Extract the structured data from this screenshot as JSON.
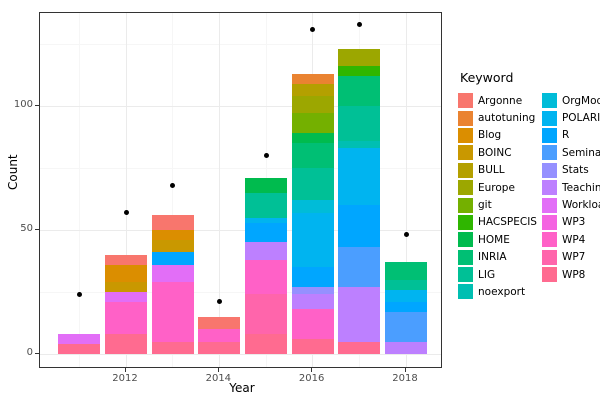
{
  "chart_data": {
    "type": "bar",
    "stacked": true,
    "xlabel": "Year",
    "ylabel": "Count",
    "y_ticks": [
      0,
      50,
      100
    ],
    "y_minor": [
      25,
      75,
      125
    ],
    "x_ticks": [
      2012,
      2014,
      2016,
      2018
    ],
    "x_minor": [
      2011,
      2013,
      2015,
      2017
    ],
    "ylim": [
      -6,
      137.5
    ],
    "xlim": [
      2010.4,
      2018.85
    ],
    "grid": true,
    "legend_title": "Keyword",
    "legend_position": "right",
    "keywords": [
      {
        "name": "Argonne",
        "color": "#F8766D"
      },
      {
        "name": "autotuning",
        "color": "#EA8331"
      },
      {
        "name": "Blog",
        "color": "#DB8E00"
      },
      {
        "name": "BOINC",
        "color": "#C99800"
      },
      {
        "name": "BULL",
        "color": "#B4A000"
      },
      {
        "name": "Europe",
        "color": "#9CA700"
      },
      {
        "name": "git",
        "color": "#74B000"
      },
      {
        "name": "HACSPECIS",
        "color": "#2FB600"
      },
      {
        "name": "HOME",
        "color": "#00BB4E"
      },
      {
        "name": "INRIA",
        "color": "#00BF74"
      },
      {
        "name": "LIG",
        "color": "#00C096"
      },
      {
        "name": "noexport",
        "color": "#00BFB2"
      },
      {
        "name": "OrgMode",
        "color": "#00BCD8"
      },
      {
        "name": "POLARIS",
        "color": "#00B4F0"
      },
      {
        "name": "R",
        "color": "#00A6FF"
      },
      {
        "name": "Seminar",
        "color": "#4B9EFF"
      },
      {
        "name": "Stats",
        "color": "#9590FF"
      },
      {
        "name": "Teaching",
        "color": "#BD80FF"
      },
      {
        "name": "Workload",
        "color": "#E26EF7"
      },
      {
        "name": "WP3",
        "color": "#F463E1"
      },
      {
        "name": "WP4",
        "color": "#FF61C7"
      },
      {
        "name": "WP7",
        "color": "#FF65AB"
      },
      {
        "name": "WP8",
        "color": "#FF6B90"
      }
    ],
    "bars": [
      {
        "year": 2011,
        "total": 8,
        "segments": [
          {
            "keyword": "WP8",
            "value": 4
          },
          {
            "keyword": "Workload",
            "value": 4
          }
        ]
      },
      {
        "year": 2012,
        "total": 40,
        "segments": [
          {
            "keyword": "WP8",
            "value": 8
          },
          {
            "keyword": "WP4",
            "value": 13
          },
          {
            "keyword": "Workload",
            "value": 4
          },
          {
            "keyword": "BOINC",
            "value": 4
          },
          {
            "keyword": "Blog",
            "value": 7
          },
          {
            "keyword": "Argonne",
            "value": 4
          }
        ]
      },
      {
        "year": 2013,
        "total": 56,
        "segments": [
          {
            "keyword": "WP8",
            "value": 5
          },
          {
            "keyword": "WP4",
            "value": 24
          },
          {
            "keyword": "Workload",
            "value": 7
          },
          {
            "keyword": "R",
            "value": 5
          },
          {
            "keyword": "BOINC",
            "value": 5
          },
          {
            "keyword": "Blog",
            "value": 4
          },
          {
            "keyword": "Argonne",
            "value": 6
          }
        ]
      },
      {
        "year": 2014,
        "total": 15,
        "segments": [
          {
            "keyword": "WP8",
            "value": 5
          },
          {
            "keyword": "WP4",
            "value": 5
          },
          {
            "keyword": "Argonne",
            "value": 5
          }
        ]
      },
      {
        "year": 2015,
        "total": 71,
        "segments": [
          {
            "keyword": "WP8",
            "value": 8
          },
          {
            "keyword": "WP7",
            "value": 16
          },
          {
            "keyword": "WP4",
            "value": 14
          },
          {
            "keyword": "Teaching",
            "value": 7
          },
          {
            "keyword": "R",
            "value": 8
          },
          {
            "keyword": "POLARIS",
            "value": 2
          },
          {
            "keyword": "LIG",
            "value": 10
          },
          {
            "keyword": "HOME",
            "value": 6
          }
        ]
      },
      {
        "year": 2016,
        "total": 113,
        "segments": [
          {
            "keyword": "WP8",
            "value": 6
          },
          {
            "keyword": "WP4",
            "value": 12
          },
          {
            "keyword": "Teaching",
            "value": 6
          },
          {
            "keyword": "Stats",
            "value": 3
          },
          {
            "keyword": "R",
            "value": 8
          },
          {
            "keyword": "POLARIS",
            "value": 22
          },
          {
            "keyword": "OrgMode",
            "value": 5
          },
          {
            "keyword": "LIG",
            "value": 13
          },
          {
            "keyword": "INRIA",
            "value": 10
          },
          {
            "keyword": "HOME",
            "value": 4
          },
          {
            "keyword": "git",
            "value": 8
          },
          {
            "keyword": "Europe",
            "value": 7
          },
          {
            "keyword": "BULL",
            "value": 5
          },
          {
            "keyword": "autotuning",
            "value": 4
          }
        ]
      },
      {
        "year": 2017,
        "total": 123,
        "segments": [
          {
            "keyword": "WP8",
            "value": 5
          },
          {
            "keyword": "Teaching",
            "value": 22
          },
          {
            "keyword": "Seminar",
            "value": 16
          },
          {
            "keyword": "R",
            "value": 17
          },
          {
            "keyword": "POLARIS",
            "value": 23
          },
          {
            "keyword": "noexport",
            "value": 3
          },
          {
            "keyword": "LIG",
            "value": 14
          },
          {
            "keyword": "INRIA",
            "value": 12
          },
          {
            "keyword": "HACSPECIS",
            "value": 4
          },
          {
            "keyword": "Europe",
            "value": 7
          }
        ]
      },
      {
        "year": 2018,
        "total": 37,
        "segments": [
          {
            "keyword": "Teaching",
            "value": 5
          },
          {
            "keyword": "Seminar",
            "value": 12
          },
          {
            "keyword": "R",
            "value": 4
          },
          {
            "keyword": "POLARIS",
            "value": 5
          },
          {
            "keyword": "LIG",
            "value": 4
          },
          {
            "keyword": "INRIA",
            "value": 7
          }
        ]
      }
    ],
    "points": [
      {
        "year": 2011,
        "value": 24
      },
      {
        "year": 2012,
        "value": 57
      },
      {
        "year": 2013,
        "value": 68
      },
      {
        "year": 2014,
        "value": 21
      },
      {
        "year": 2015,
        "value": 80
      },
      {
        "year": 2016,
        "value": 131
      },
      {
        "year": 2017,
        "value": 133
      },
      {
        "year": 2018,
        "value": 48
      }
    ]
  },
  "axes": {
    "xlabel": "Year",
    "ylabel": "Count"
  },
  "legend": {
    "title": "Keyword"
  }
}
